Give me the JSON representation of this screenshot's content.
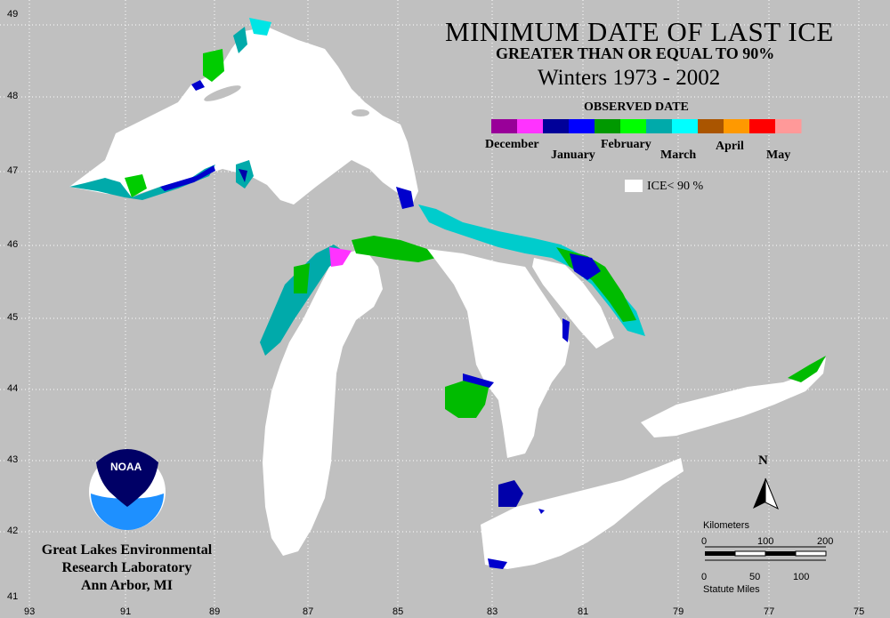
{
  "title": "MINIMUM DATE OF LAST ICE",
  "subtitle": "GREATER THAN OR EQUAL TO 90%",
  "winters": "Winters 1973 - 2002",
  "legend": {
    "title": "OBSERVED DATE",
    "colorbar": [
      "#990099",
      "#ff33ff",
      "#000099",
      "#0000ff",
      "#009900",
      "#00ff00",
      "#00aaaa",
      "#00ffff",
      "#aa5500",
      "#ff9900",
      "#ff0000",
      "#ff9999"
    ],
    "months_top": [
      "December",
      "February",
      "April"
    ],
    "months_bottom": [
      "January",
      "March",
      "May"
    ],
    "ice_label": "ICE< 90 %"
  },
  "axes": {
    "lat": [
      "49",
      "48",
      "47",
      "46",
      "45",
      "44",
      "43",
      "42",
      "41"
    ],
    "lon": [
      "93",
      "91",
      "89",
      "87",
      "85",
      "83",
      "81",
      "79",
      "77",
      "75"
    ]
  },
  "org": {
    "line1": "Great Lakes Environmental",
    "line2": "Research Laboratory",
    "line3": "Ann Arbor, MI",
    "logo_text": "NOAA"
  },
  "scale": {
    "km_title": "Kilometers",
    "km_ticks": [
      "0",
      "100",
      "200"
    ],
    "mi_ticks": [
      "0",
      "50",
      "100"
    ],
    "mi_title": "Statute Miles"
  },
  "north": "N",
  "colors": {
    "background": "#c0c0c0",
    "lake": "#ffffff",
    "grid": "#ffffff"
  }
}
